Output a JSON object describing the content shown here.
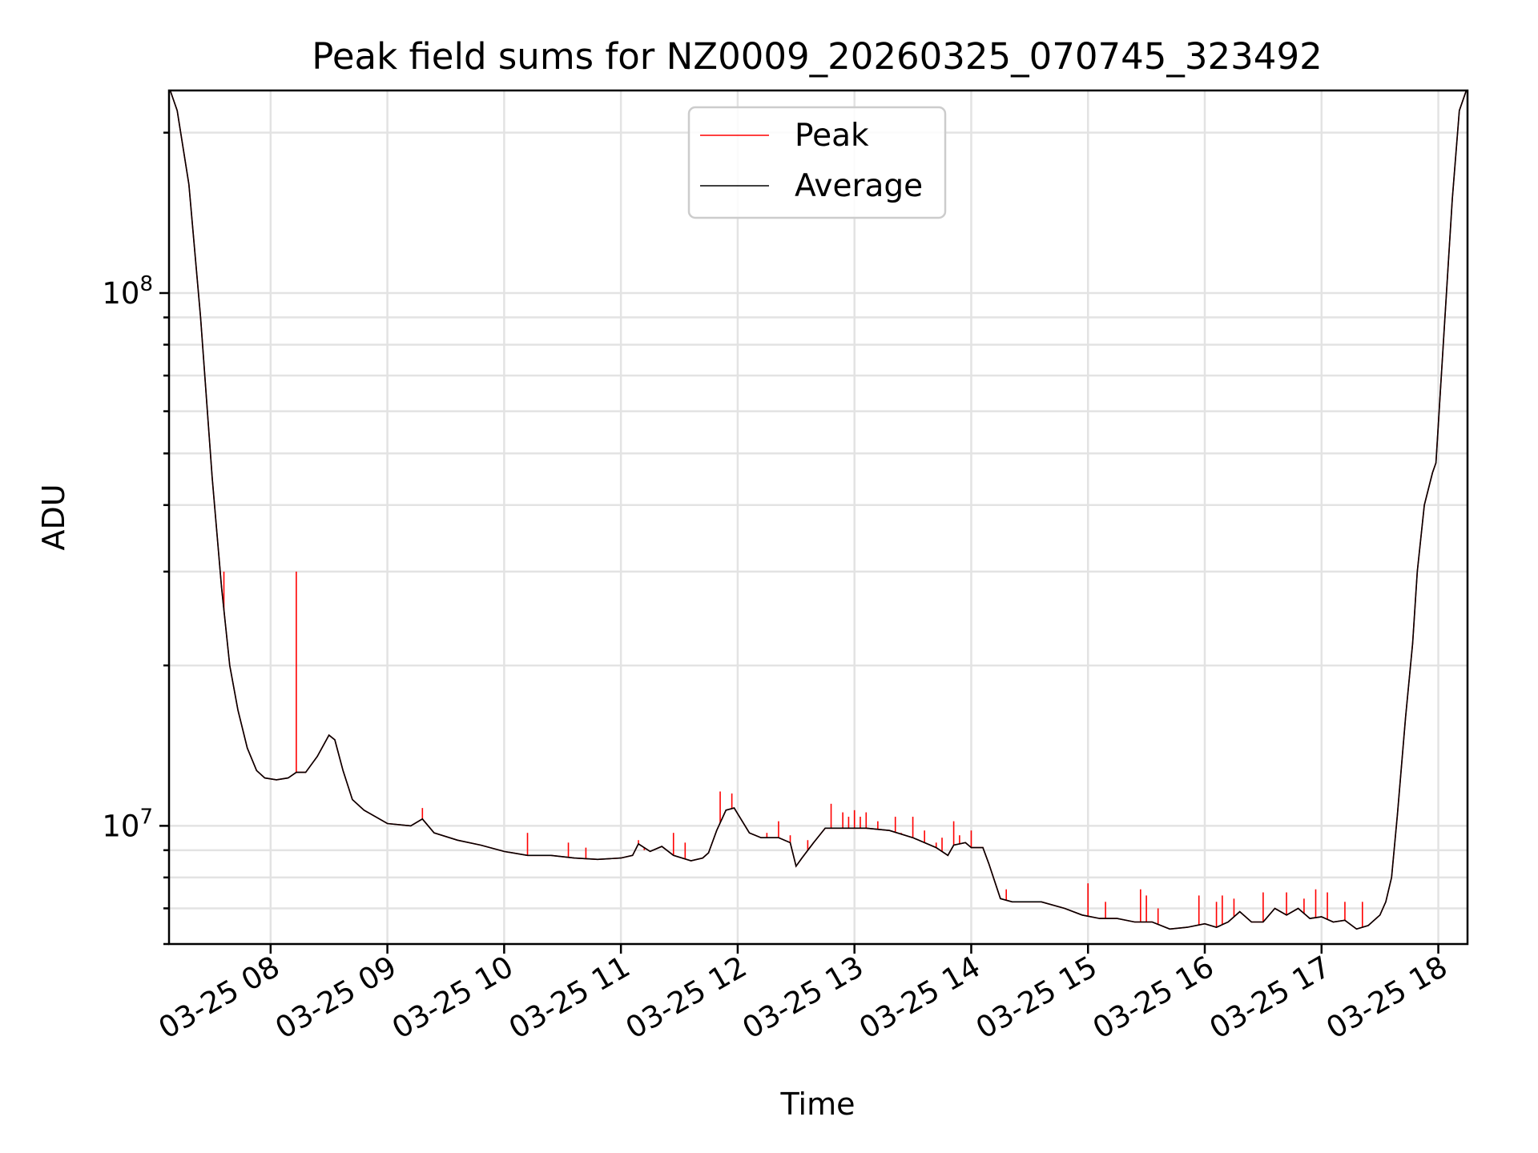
{
  "chart_data": {
    "type": "line",
    "title": "Peak field sums for NZ0009_20260325_070745_323492",
    "xlabel": "Time",
    "ylabel": "ADU",
    "yscale": "log",
    "xlim_hours": [
      7.13,
      18.25
    ],
    "ylim": [
      6000000,
      240000000
    ],
    "x_ticks": [
      {
        "hour": 8,
        "label": "03-25 08"
      },
      {
        "hour": 9,
        "label": "03-25 09"
      },
      {
        "hour": 10,
        "label": "03-25 10"
      },
      {
        "hour": 11,
        "label": "03-25 11"
      },
      {
        "hour": 12,
        "label": "03-25 12"
      },
      {
        "hour": 13,
        "label": "03-25 13"
      },
      {
        "hour": 14,
        "label": "03-25 14"
      },
      {
        "hour": 15,
        "label": "03-25 15"
      },
      {
        "hour": 16,
        "label": "03-25 16"
      },
      {
        "hour": 17,
        "label": "03-25 17"
      },
      {
        "hour": 18,
        "label": "03-25 18"
      }
    ],
    "y_ticks": [
      {
        "value": 10000000,
        "base": "10",
        "exp": "7"
      },
      {
        "value": 100000000,
        "base": "10",
        "exp": "8"
      }
    ],
    "legend": {
      "position": "upper-center",
      "entries": [
        {
          "name": "Peak",
          "color": "#ff0000"
        },
        {
          "name": "Average",
          "color": "#000000"
        }
      ]
    },
    "series": [
      {
        "name": "Average",
        "color": "#000000",
        "points": [
          [
            7.14,
            240000000
          ],
          [
            7.2,
            220000000
          ],
          [
            7.3,
            160000000
          ],
          [
            7.4,
            90000000
          ],
          [
            7.5,
            45000000
          ],
          [
            7.58,
            28000000
          ],
          [
            7.65,
            20000000
          ],
          [
            7.72,
            16500000
          ],
          [
            7.8,
            14000000
          ],
          [
            7.88,
            12700000
          ],
          [
            7.95,
            12300000
          ],
          [
            8.05,
            12200000
          ],
          [
            8.15,
            12300000
          ],
          [
            8.22,
            12600000
          ],
          [
            8.3,
            12600000
          ],
          [
            8.4,
            13500000
          ],
          [
            8.5,
            14800000
          ],
          [
            8.55,
            14500000
          ],
          [
            8.62,
            12700000
          ],
          [
            8.7,
            11200000
          ],
          [
            8.8,
            10700000
          ],
          [
            9.0,
            10100000
          ],
          [
            9.2,
            10000000
          ],
          [
            9.3,
            10300000
          ],
          [
            9.4,
            9700000
          ],
          [
            9.6,
            9400000
          ],
          [
            9.8,
            9200000
          ],
          [
            10.0,
            8950000
          ],
          [
            10.2,
            8800000
          ],
          [
            10.4,
            8800000
          ],
          [
            10.6,
            8700000
          ],
          [
            10.8,
            8650000
          ],
          [
            11.0,
            8700000
          ],
          [
            11.1,
            8800000
          ],
          [
            11.15,
            9250000
          ],
          [
            11.25,
            8950000
          ],
          [
            11.35,
            9150000
          ],
          [
            11.45,
            8800000
          ],
          [
            11.6,
            8600000
          ],
          [
            11.7,
            8700000
          ],
          [
            11.75,
            8900000
          ],
          [
            11.82,
            9800000
          ],
          [
            11.9,
            10700000
          ],
          [
            11.97,
            10800000
          ],
          [
            12.1,
            9700000
          ],
          [
            12.2,
            9500000
          ],
          [
            12.35,
            9500000
          ],
          [
            12.45,
            9300000
          ],
          [
            12.5,
            8400000
          ],
          [
            12.55,
            8700000
          ],
          [
            12.65,
            9300000
          ],
          [
            12.75,
            9900000
          ],
          [
            12.9,
            9900000
          ],
          [
            13.1,
            9900000
          ],
          [
            13.3,
            9800000
          ],
          [
            13.5,
            9500000
          ],
          [
            13.7,
            9100000
          ],
          [
            13.8,
            8800000
          ],
          [
            13.85,
            9200000
          ],
          [
            13.95,
            9300000
          ],
          [
            14.0,
            9100000
          ],
          [
            14.1,
            9100000
          ],
          [
            14.15,
            8500000
          ],
          [
            14.25,
            7300000
          ],
          [
            14.35,
            7200000
          ],
          [
            14.6,
            7200000
          ],
          [
            14.8,
            7000000
          ],
          [
            14.95,
            6800000
          ],
          [
            15.1,
            6700000
          ],
          [
            15.25,
            6700000
          ],
          [
            15.4,
            6600000
          ],
          [
            15.55,
            6600000
          ],
          [
            15.7,
            6400000
          ],
          [
            15.85,
            6450000
          ],
          [
            16.0,
            6550000
          ],
          [
            16.1,
            6450000
          ],
          [
            16.2,
            6600000
          ],
          [
            16.3,
            6900000
          ],
          [
            16.4,
            6600000
          ],
          [
            16.5,
            6600000
          ],
          [
            16.6,
            7000000
          ],
          [
            16.7,
            6800000
          ],
          [
            16.8,
            7000000
          ],
          [
            16.9,
            6700000
          ],
          [
            17.0,
            6750000
          ],
          [
            17.1,
            6600000
          ],
          [
            17.2,
            6650000
          ],
          [
            17.3,
            6400000
          ],
          [
            17.4,
            6500000
          ],
          [
            17.5,
            6800000
          ],
          [
            17.55,
            7200000
          ],
          [
            17.6,
            8000000
          ],
          [
            17.65,
            10500000
          ],
          [
            17.72,
            16000000
          ],
          [
            17.78,
            22000000
          ],
          [
            17.82,
            30000000
          ],
          [
            17.88,
            40000000
          ],
          [
            17.95,
            46000000
          ],
          [
            17.98,
            48000000
          ],
          [
            18.05,
            85000000
          ],
          [
            18.12,
            150000000
          ],
          [
            18.18,
            220000000
          ],
          [
            18.24,
            240000000
          ]
        ]
      },
      {
        "name": "Peak",
        "color": "#ff0000",
        "spikes": [
          [
            7.6,
            30000000
          ],
          [
            8.22,
            30000000
          ],
          [
            9.3,
            10800000
          ],
          [
            10.2,
            9700000
          ],
          [
            10.55,
            9300000
          ],
          [
            10.7,
            9100000
          ],
          [
            11.15,
            9400000
          ],
          [
            11.2,
            9000000
          ],
          [
            11.45,
            9700000
          ],
          [
            11.55,
            9300000
          ],
          [
            11.85,
            11600000
          ],
          [
            11.95,
            11500000
          ],
          [
            12.25,
            9700000
          ],
          [
            12.35,
            10200000
          ],
          [
            12.45,
            9600000
          ],
          [
            12.6,
            9400000
          ],
          [
            12.8,
            11000000
          ],
          [
            12.9,
            10600000
          ],
          [
            12.95,
            10400000
          ],
          [
            13.0,
            10700000
          ],
          [
            13.05,
            10400000
          ],
          [
            13.1,
            10600000
          ],
          [
            13.2,
            10200000
          ],
          [
            13.35,
            10400000
          ],
          [
            13.4,
            9700000
          ],
          [
            13.5,
            10400000
          ],
          [
            13.6,
            9800000
          ],
          [
            13.7,
            9300000
          ],
          [
            13.75,
            9500000
          ],
          [
            13.85,
            10200000
          ],
          [
            13.9,
            9600000
          ],
          [
            14.0,
            9800000
          ],
          [
            14.3,
            7600000
          ],
          [
            15.0,
            7800000
          ],
          [
            15.15,
            7200000
          ],
          [
            15.45,
            7600000
          ],
          [
            15.5,
            7400000
          ],
          [
            15.6,
            7000000
          ],
          [
            15.95,
            7400000
          ],
          [
            16.1,
            7200000
          ],
          [
            16.15,
            7400000
          ],
          [
            16.25,
            7300000
          ],
          [
            16.5,
            7500000
          ],
          [
            16.7,
            7500000
          ],
          [
            16.85,
            7300000
          ],
          [
            16.95,
            7600000
          ],
          [
            17.05,
            7500000
          ],
          [
            17.2,
            7200000
          ],
          [
            17.35,
            7200000
          ]
        ]
      }
    ]
  }
}
